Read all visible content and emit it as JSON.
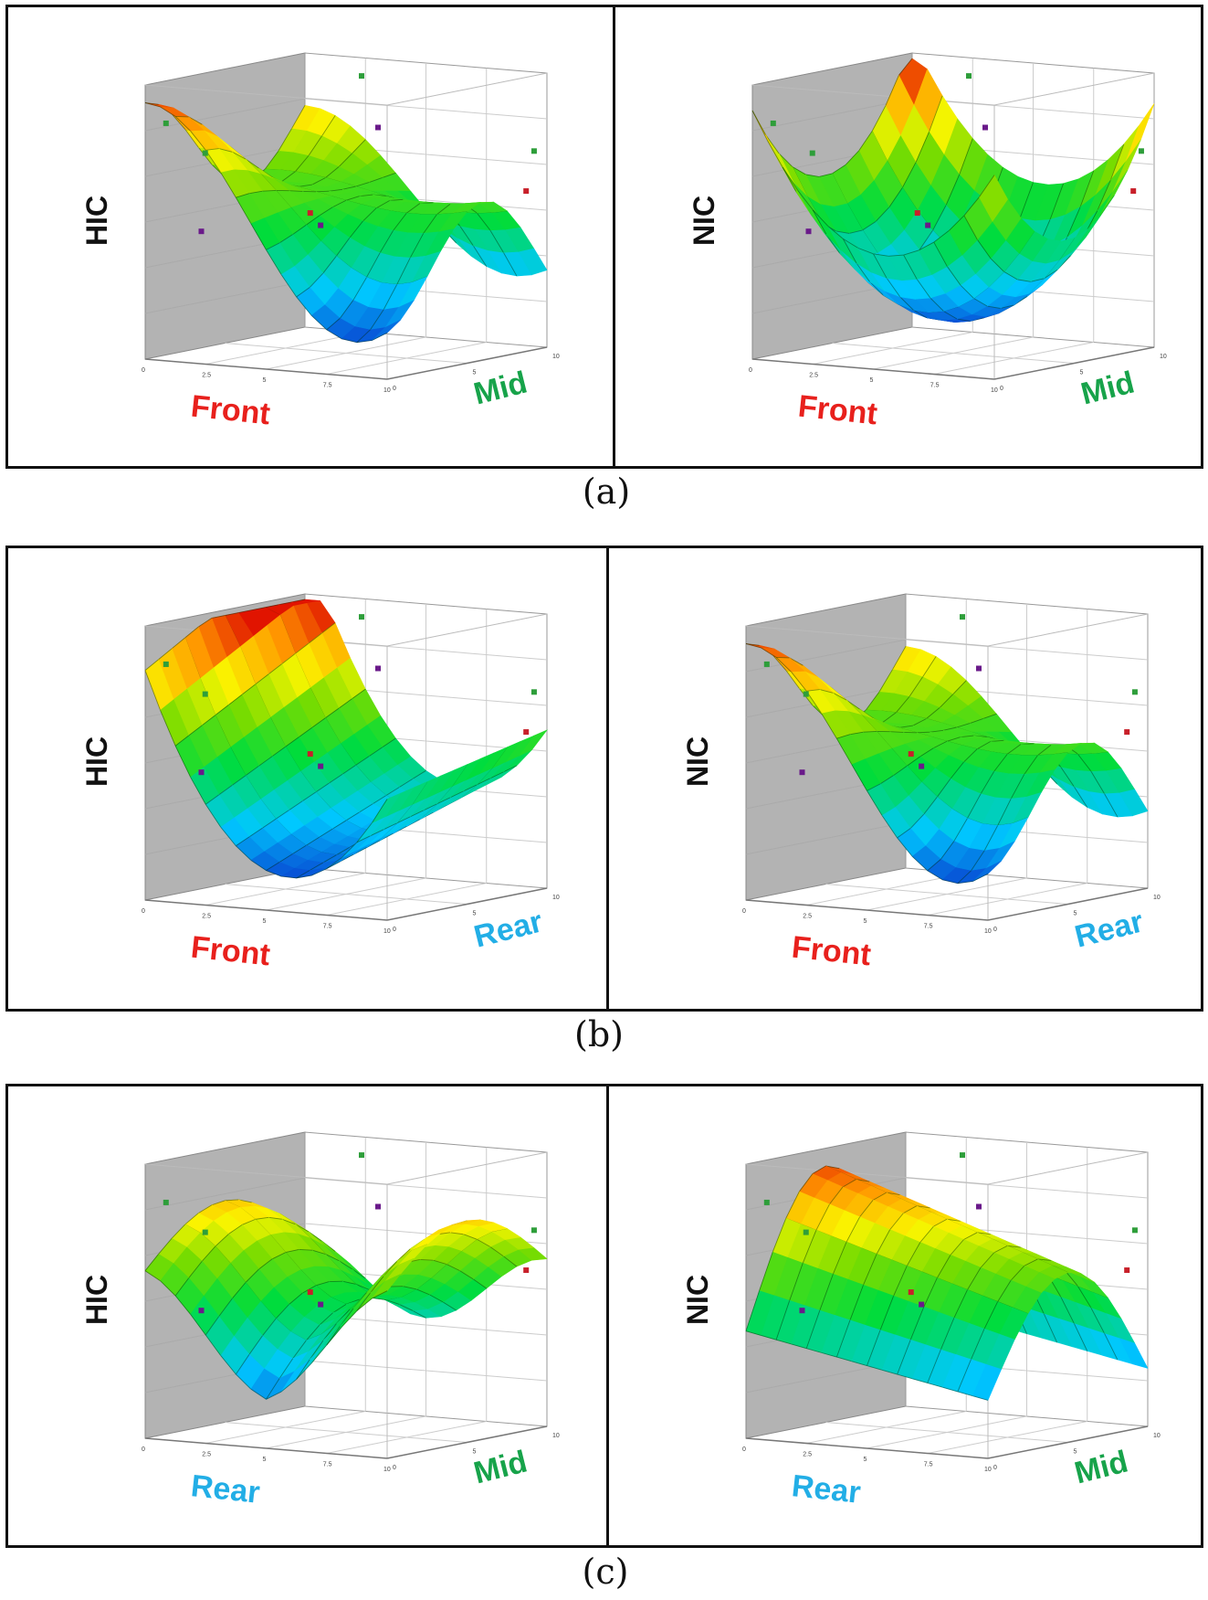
{
  "figure": {
    "captions": [
      "(a)",
      "(b)",
      "(c)"
    ],
    "colors": {
      "front": "#e8201c",
      "mid": "#17a34a",
      "rear": "#22aee6",
      "wall": "#b3b3b3",
      "point_green": "#2e9e3a",
      "point_red": "#c8202a",
      "point_purple": "#6a1a8a"
    }
  },
  "chart_data": [
    {
      "type": "surface",
      "panel": "a-left",
      "zlabel": "HIC",
      "xlabel": "Front",
      "ylabel": "Mid",
      "xlabel_color": "front",
      "ylabel_color": "mid",
      "x_ticks": [
        "0",
        "2.5",
        "5",
        "7.5",
        "10"
      ],
      "y_ticks": [
        "0",
        "5",
        "10"
      ],
      "shape": "saddle-high-front-left"
    },
    {
      "type": "surface",
      "panel": "a-right",
      "zlabel": "NIC",
      "xlabel": "Front",
      "ylabel": "Mid",
      "xlabel_color": "front",
      "ylabel_color": "mid",
      "x_ticks": [
        "0",
        "2.5",
        "5",
        "7.5",
        "10"
      ],
      "y_ticks": [
        "0",
        "5",
        "10"
      ],
      "shape": "bowl"
    },
    {
      "type": "surface",
      "panel": "b-left",
      "zlabel": "HIC",
      "xlabel": "Front",
      "ylabel": "Rear",
      "xlabel_color": "front",
      "ylabel_color": "rear",
      "x_ticks": [
        "0",
        "2.5",
        "5",
        "7.5",
        "10"
      ],
      "y_ticks": [
        "0",
        "5",
        "10"
      ],
      "shape": "valley"
    },
    {
      "type": "surface",
      "panel": "b-right",
      "zlabel": "NIC",
      "xlabel": "Front",
      "ylabel": "Rear",
      "xlabel_color": "front",
      "ylabel_color": "rear",
      "x_ticks": [
        "0",
        "2.5",
        "5",
        "7.5",
        "10"
      ],
      "y_ticks": [
        "0",
        "5",
        "10"
      ],
      "shape": "saddle-high-front-left"
    },
    {
      "type": "surface",
      "panel": "c-left",
      "zlabel": "HIC",
      "xlabel": "Rear",
      "ylabel": "Mid",
      "xlabel_color": "rear",
      "ylabel_color": "mid",
      "x_ticks": [
        "0",
        "2.5",
        "5",
        "7.5",
        "10"
      ],
      "y_ticks": [
        "0",
        "5",
        "10"
      ],
      "shape": "saddle-elevated"
    },
    {
      "type": "surface",
      "panel": "c-right",
      "zlabel": "NIC",
      "xlabel": "Rear",
      "ylabel": "Mid",
      "xlabel_color": "rear",
      "ylabel_color": "mid",
      "x_ticks": [
        "0",
        "2.5",
        "5",
        "7.5",
        "10"
      ],
      "y_ticks": [
        "0",
        "5",
        "10"
      ],
      "shape": "ridge"
    }
  ]
}
